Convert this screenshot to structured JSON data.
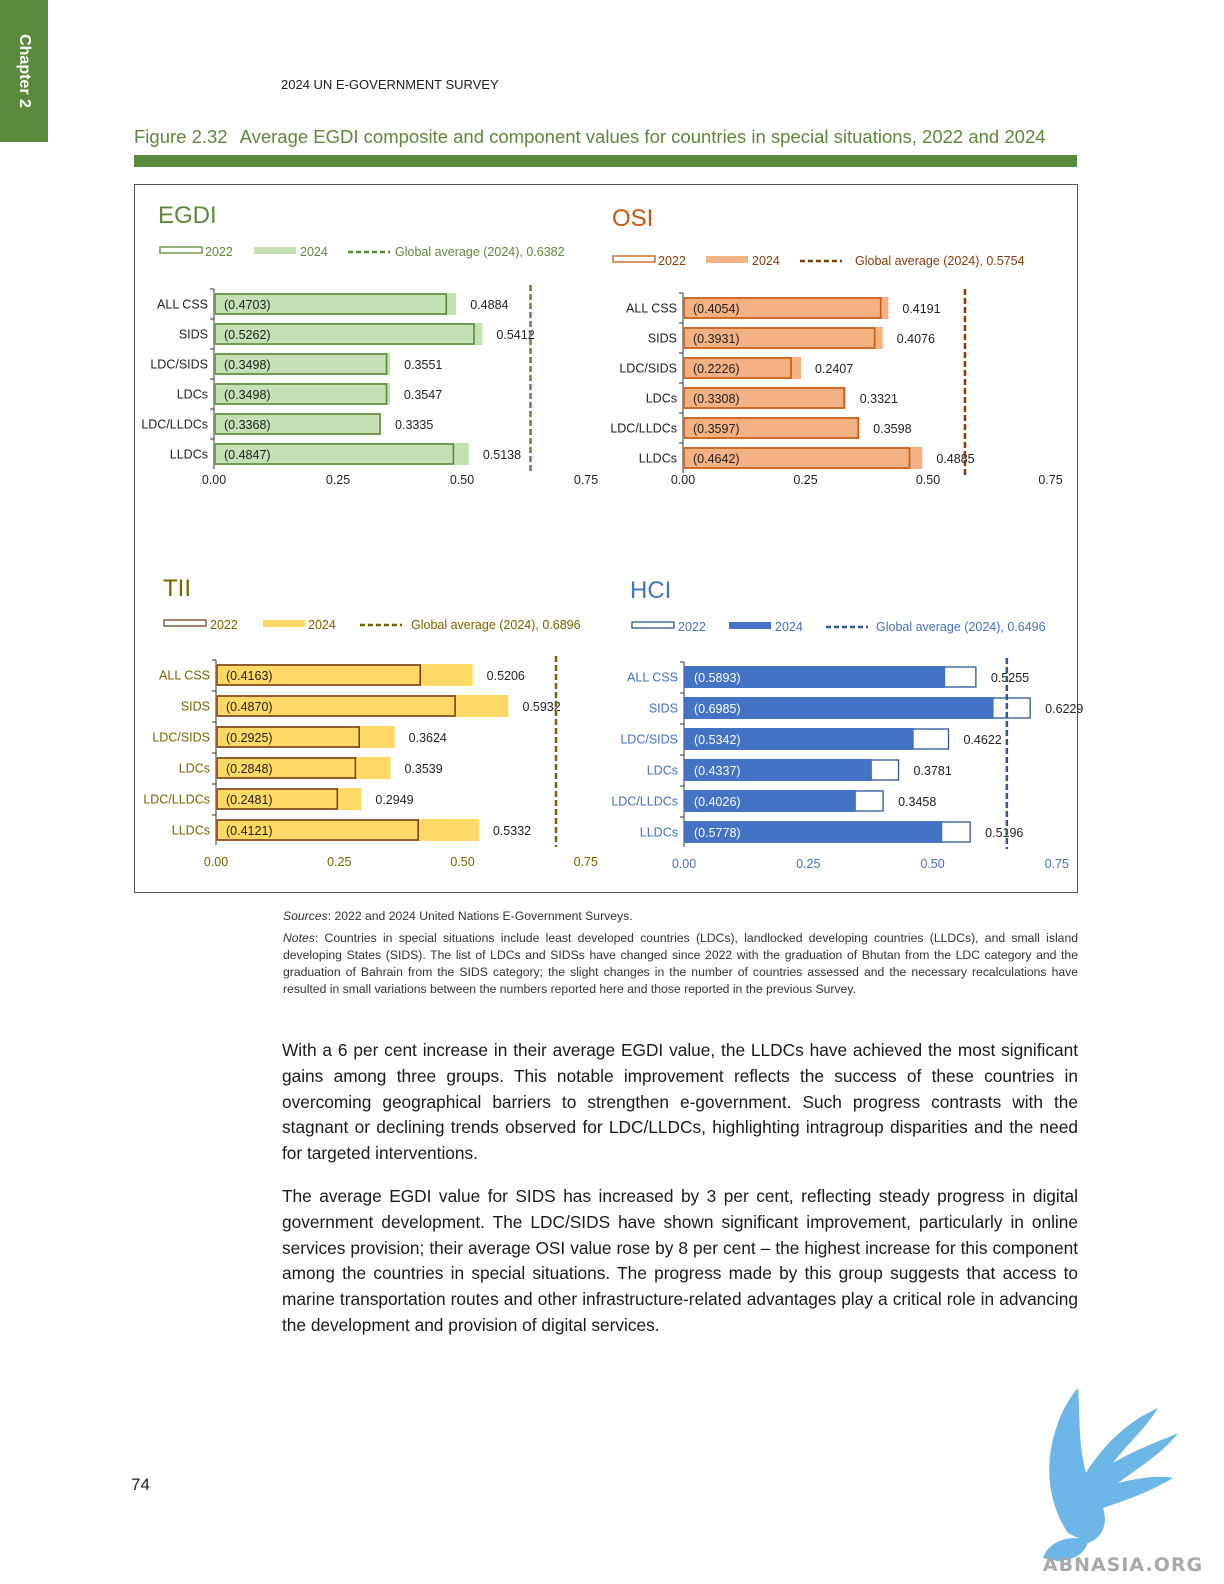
{
  "chapter_tab": "Chapter 2",
  "running_head": "2024 UN E-GOVERNMENT SURVEY",
  "figure": {
    "number": "Figure 2.32",
    "title": "Average EGDI composite and component values for countries in special situations, 2022 and 2024"
  },
  "colors": {
    "green": "#5a8a3c",
    "egdi_fill": "#c5e0b4",
    "osi_fill": "#f4b183",
    "tii_fill": "#ffd966",
    "hci_fill": "#4472c4"
  },
  "chart_data": [
    {
      "type": "bar",
      "title": "EGDI",
      "orientation": "horizontal",
      "categories": [
        "ALL CSS",
        "SIDS",
        "LDC/SIDS",
        "LDCs",
        "LDC/LLDCs",
        "LLDCs"
      ],
      "series": [
        {
          "name": "2022",
          "values": [
            0.4703,
            0.5262,
            0.3498,
            0.3498,
            0.3368,
            0.4847
          ],
          "labels": [
            "(0.4703)",
            "(0.5262)",
            "(0.3498)",
            "(0.3498)",
            "(0.3368)",
            "(0.4847)"
          ]
        },
        {
          "name": "2024",
          "values": [
            0.4884,
            0.5412,
            0.3551,
            0.3547,
            0.3335,
            0.5138
          ],
          "labels": [
            "0.4884",
            "0.5412",
            "0.3551",
            "0.3547",
            "0.3335",
            "0.5138"
          ]
        }
      ],
      "reference_line": {
        "label": "Global average (2024), 0.6382",
        "value": 0.6382
      },
      "xlim": [
        0,
        0.75
      ],
      "ticks": [
        "0.00",
        "0.25",
        "0.50",
        "0.75"
      ],
      "colors": {
        "c2022": "#5a8a3c",
        "c2024": "#c5e0b4",
        "ref": "#5a8a3c",
        "text": "#222222",
        "legend_text": "#5a8a3c",
        "title": "#5a8a3c"
      }
    },
    {
      "type": "bar",
      "title": "OSI",
      "orientation": "horizontal",
      "categories": [
        "ALL CSS",
        "SIDS",
        "LDC/SIDS",
        "LDCs",
        "LDC/LLDCs",
        "LLDCs"
      ],
      "series": [
        {
          "name": "2022",
          "values": [
            0.4054,
            0.3931,
            0.2226,
            0.3308,
            0.3597,
            0.4642
          ],
          "labels": [
            "(0.4054)",
            "(0.3931)",
            "(0.2226)",
            "(0.3308)",
            "(0.3597)",
            "(0.4642)"
          ]
        },
        {
          "name": "2024",
          "values": [
            0.4191,
            0.4076,
            0.2407,
            0.3321,
            0.3598,
            0.4885
          ],
          "labels": [
            "0.4191",
            "0.4076",
            "0.2407",
            "0.3321",
            "0.3598",
            "0.4885"
          ]
        }
      ],
      "reference_line": {
        "label": "Global average (2024), 0.5754",
        "value": 0.5754
      },
      "xlim": [
        0,
        0.75
      ],
      "ticks": [
        "0.00",
        "0.25",
        "0.50",
        "0.75"
      ],
      "colors": {
        "c2022": "#c55a11",
        "c2024": "#f4b183",
        "ref": "#843c0c",
        "text": "#222222",
        "legend_text": "#843c0c",
        "title": "#c55a11"
      }
    },
    {
      "type": "bar",
      "title": "TII",
      "orientation": "horizontal",
      "categories": [
        "ALL CSS",
        "SIDS",
        "LDC/SIDS",
        "LDCs",
        "LDC/LLDCs",
        "LLDCs"
      ],
      "series": [
        {
          "name": "2022",
          "values": [
            0.4163,
            0.487,
            0.2925,
            0.2848,
            0.2481,
            0.4121
          ],
          "labels": [
            "(0.4163)",
            "(0.4870)",
            "(0.2925)",
            "(0.2848)",
            "(0.2481)",
            "(0.4121)"
          ]
        },
        {
          "name": "2024",
          "values": [
            0.5206,
            0.5932,
            0.3624,
            0.3539,
            0.2949,
            0.5332
          ],
          "labels": [
            "0.5206",
            "0.5932",
            "0.3624",
            "0.3539",
            "0.2949",
            "0.5332"
          ]
        }
      ],
      "reference_line": {
        "label": "Global average (2024), 0.6896",
        "value": 0.6896
      },
      "xlim": [
        0,
        0.75
      ],
      "ticks": [
        "0.00",
        "0.25",
        "0.50",
        "0.75"
      ],
      "colors": {
        "c2022": "#7b3f1e",
        "c2024": "#ffd966",
        "ref": "#806000",
        "text": "#806000",
        "legend_text": "#806000",
        "title": "#806000"
      }
    },
    {
      "type": "bar",
      "title": "HCI",
      "orientation": "horizontal",
      "categories": [
        "ALL CSS",
        "SIDS",
        "LDC/SIDS",
        "LDCs",
        "LDC/LLDCs",
        "LLDCs"
      ],
      "series": [
        {
          "name": "2022",
          "values": [
            0.5893,
            0.6985,
            0.5342,
            0.4337,
            0.4026,
            0.5778
          ],
          "labels": [
            "(0.5893)",
            "(0.6985)",
            "(0.5342)",
            "(0.4337)",
            "(0.4026)",
            "(0.5778)"
          ]
        },
        {
          "name": "2024",
          "values": [
            0.5255,
            0.6229,
            0.4622,
            0.3781,
            0.3458,
            0.5196
          ],
          "labels": [
            "0.5255",
            "0.6229",
            "0.4622",
            "0.3781",
            "0.3458",
            "0.5196"
          ]
        }
      ],
      "reference_line": {
        "label": "Global average (2024), 0.6496",
        "value": 0.6496
      },
      "xlim": [
        0,
        0.75
      ],
      "ticks": [
        "0.00",
        "0.25",
        "0.50",
        "0.75"
      ],
      "colors": {
        "c2022": "#2f5597",
        "c2024": "#4472c4",
        "ref": "#2f5597",
        "text": "#4472c4",
        "legend_text": "#4472c4",
        "title": "#4472c4"
      }
    }
  ],
  "sources": {
    "label": "Sources",
    "text": ": 2022 and 2024 United Nations E-Government Surveys."
  },
  "notes": {
    "label": "Notes",
    "text": ": Countries in special situations include least developed countries (LDCs), landlocked developing countries (LLDCs), and small island developing States (SIDS). The list of LDCs and SIDSs have changed since 2022 with the graduation of Bhutan from the LDC category and the graduation of Bahrain from the SIDS category; the slight changes in the number of countries assessed and the necessary recalculations have resulted in small variations between the numbers reported here and those reported in the previous Survey."
  },
  "body": {
    "p1": "With a 6 per cent increase in their average EGDI value, the LLDCs have achieved the most significant gains among three groups. This notable improvement reflects the success of these countries in overcoming geographical barriers to strengthen e-government. Such progress contrasts with the stagnant or declining trends observed for LDC/LLDCs, highlighting intragroup disparities and the need for targeted interventions.",
    "p2": "The average EGDI value for SIDS has increased by 3 per cent, reflecting steady progress in digital government development. The LDC/SIDS have shown significant improvement, particularly in online services provision; their average OSI value rose by 8 per cent – the highest increase for this component among the countries in special situations. The progress made by this group suggests that access to marine transportation routes and other infrastructure-related advantages play a critical role in advancing the development and provision of digital services."
  },
  "page_number": "74",
  "watermark": "ABNASIA.ORG"
}
